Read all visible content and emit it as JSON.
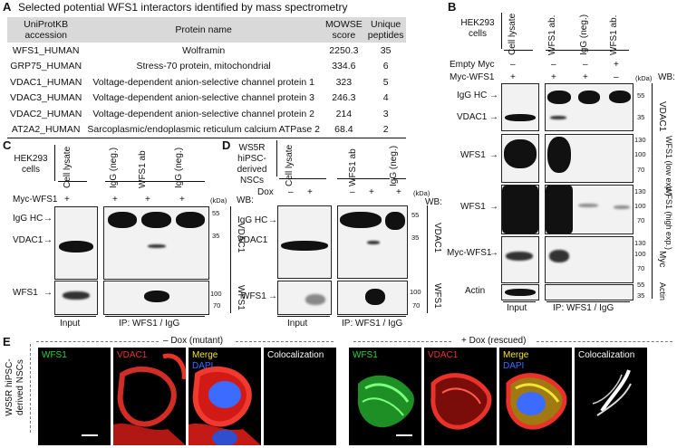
{
  "panelA": {
    "letter": "A",
    "title": "Selected potential WFS1 interactors identified by mass spectrometry",
    "headers": [
      "UniProtKB accession",
      "Protein name",
      "MOWSE score",
      "Unique peptides"
    ],
    "rows": [
      [
        "WFS1_HUMAN",
        "Wolframin",
        "2250.3",
        "35"
      ],
      [
        "GRP75_HUMAN",
        "Stress-70 protein, mitochondrial",
        "334.6",
        "6"
      ],
      [
        "VDAC1_HUMAN",
        "Voltage-dependent anion-selective channel protein 1",
        "323",
        "5"
      ],
      [
        "VDAC3_HUMAN",
        "Voltage-dependent anion-selective channel protein 3",
        "246.3",
        "4"
      ],
      [
        "VDAC2_HUMAN",
        "Voltage-dependent anion-selective channel protein 2",
        "214",
        "3"
      ],
      [
        "AT2A2_HUMAN",
        "Sarcoplasmic/endoplasmic reticulum calcium ATPase 2",
        "68.4",
        "2"
      ]
    ]
  },
  "panelB": {
    "letter": "B",
    "cells": "HEK293 cells",
    "lanes": [
      "Cell lysate",
      "WFS1 ab.",
      "IgG (neg.)",
      "WFS1 ab."
    ],
    "row1_label": "Empty Myc",
    "row1_vals": [
      "–",
      "–",
      "–",
      "+"
    ],
    "row2_label": "Myc-WFS1",
    "row2_vals": [
      "+",
      "+",
      "+",
      "–"
    ],
    "kda": "(kDa)",
    "wb": "WB:",
    "left_labels": {
      "igg": "IgG HC",
      "vdac1": "VDAC1",
      "wfs1a": "WFS1",
      "wfs1b": "WFS1",
      "myc": "Myc-WFS1",
      "actin": "Actin"
    },
    "right_labels": {
      "vdac1": "VDAC1",
      "wfs1low": "WFS1 (low exp.)",
      "wfs1high": "WFS1 (high exp.)",
      "myc": "Myc",
      "actin": "Actin"
    },
    "mw": {
      "a55": "55",
      "a35": "35",
      "b130": "130",
      "b100": "100",
      "b70": "70",
      "c130": "130",
      "c100": "100",
      "c70": "70",
      "d130": "130",
      "d100": "100",
      "d70": "70",
      "e55": "55",
      "e35": "35"
    },
    "input": "Input",
    "ip": "IP: WFS1 / IgG"
  },
  "panelC": {
    "letter": "C",
    "cells": "HEK293 cells",
    "lanes": [
      "Cell lysate",
      "IgG (neg.)",
      "WFS1 ab",
      "IgG (neg.)"
    ],
    "row_label": "Myc-WFS1",
    "row_vals": [
      "+",
      "+",
      "+",
      "+"
    ],
    "kda": "(kDa)",
    "wb": "WB:",
    "labels": {
      "igg": "IgG HC",
      "vdac1": "VDAC1",
      "wfs1": "WFS1"
    },
    "right": {
      "vdac1": "VDAC1",
      "wfs1": "WFS1"
    },
    "mw": {
      "a55": "55",
      "a35": "35",
      "b100": "100",
      "b70": "70"
    },
    "input": "Input",
    "ip": "IP: WFS1 / IgG"
  },
  "panelD": {
    "letter": "D",
    "cells": "WS5R hiPSC-derived NSCs",
    "lanes": [
      "Cell lysate",
      "WFS1 ab",
      "IgG (neg.)"
    ],
    "row_label": "Dox",
    "row_vals": [
      "–",
      "+",
      "–",
      "+",
      "+"
    ],
    "kda": "(kDa)",
    "wb": "WB:",
    "labels": {
      "igg": "IgG HC",
      "vdac1": "VDAC1",
      "wfs1": "WFS1"
    },
    "right": {
      "vdac1": "VDAC1",
      "wfs1": "WFS1"
    },
    "mw": {
      "a55": "55",
      "a35": "35",
      "b100": "100",
      "b70": "70"
    },
    "input": "Input",
    "ip": "IP: WFS1 / IgG"
  },
  "panelE": {
    "letter": "E",
    "side": "WS5R hiPSC-derived NSCs",
    "minus": "– Dox (mutant)",
    "plus": "+ Dox (rescued)",
    "tiles": [
      "WFS1",
      "VDAC1",
      "Merge",
      "Colocalization"
    ],
    "dapi": "DAPI",
    "colors": {
      "green": "#2fd13a",
      "red": "#e8322a",
      "yellow": "#f3e23a",
      "blue": "#3b6cff",
      "white": "#ffffff"
    }
  }
}
